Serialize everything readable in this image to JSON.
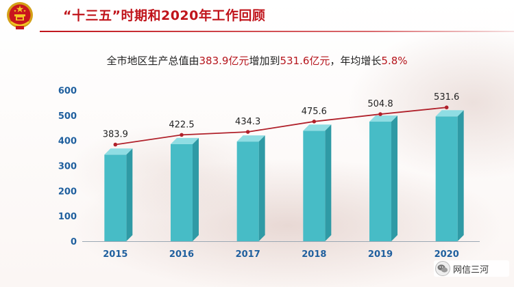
{
  "header": {
    "title": "“十三五”时期和2020年工作回顾"
  },
  "summary": {
    "prefix": "全市地区生产总值由",
    "start_value": "383.9亿元",
    "middle": "增加到",
    "end_value": "531.6亿元",
    "suffix": "，年均增长",
    "growth": "5.8%"
  },
  "watermark": {
    "text": "网信三河"
  },
  "colors": {
    "title_red": "#c0141b",
    "bar_front": "#47bcc6",
    "bar_top": "#8fdde3",
    "bar_side": "#2f9aa5",
    "line": "#b0202a",
    "axis_tick_text": "#1f5f9e"
  },
  "chart_data": {
    "type": "bar",
    "categories": [
      "2015",
      "2016",
      "2017",
      "2018",
      "2019",
      "2020"
    ],
    "series": [
      {
        "type": "bar",
        "values": [
          344,
          386,
          396,
          439,
          475,
          496
        ]
      },
      {
        "type": "line",
        "values": [
          383.9,
          422.5,
          434.3,
          475.6,
          504.8,
          531.6
        ],
        "data_labels": [
          "383.9",
          "422.5",
          "434.3",
          "475.6",
          "504.8",
          "531.6"
        ]
      }
    ],
    "ylim": [
      0,
      600
    ],
    "yticks": [
      0,
      100,
      200,
      300,
      400,
      500,
      600
    ],
    "grid": false
  }
}
